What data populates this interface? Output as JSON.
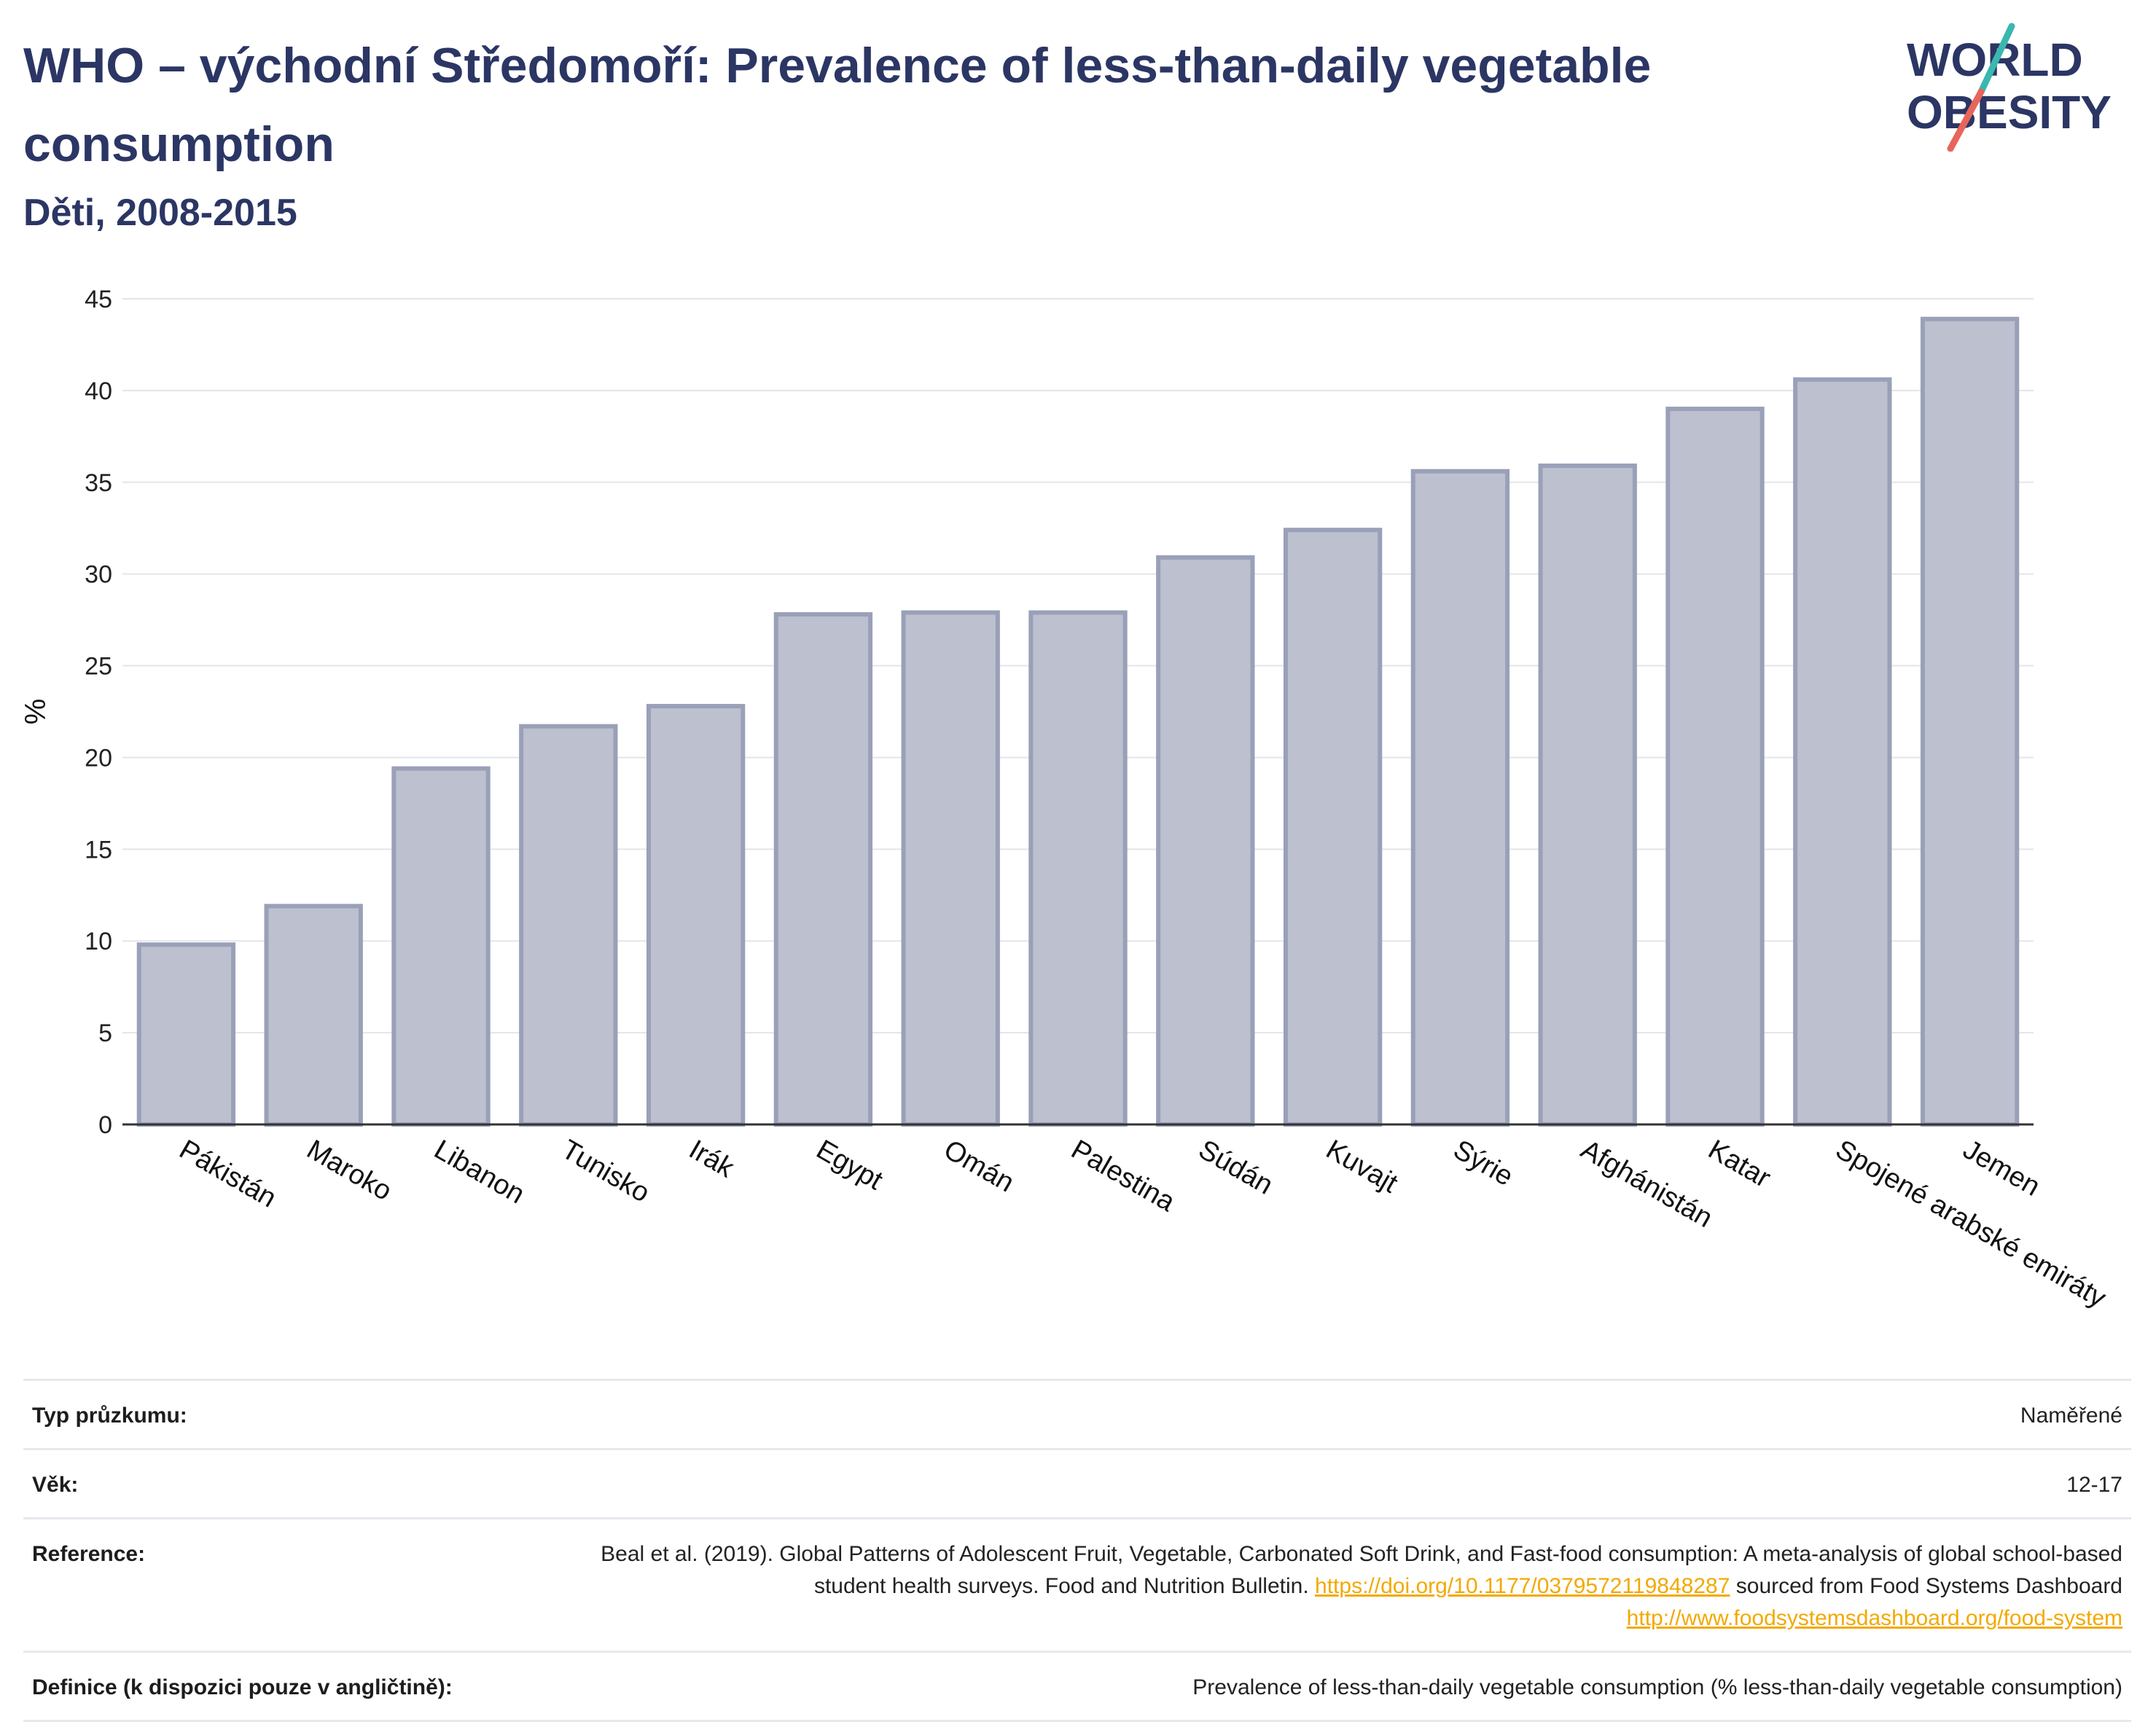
{
  "header": {
    "title": "WHO – východní Středomoří: Prevalence of less-than-daily vegetable consumption",
    "subtitle": "Děti, 2008-2015"
  },
  "logo": {
    "line1": "WORLD",
    "line2": "OBESITY",
    "text_color": "#2b3664",
    "slash_color_top": "#3ab7b0",
    "slash_color_bottom": "#e8655b"
  },
  "chart_data": {
    "type": "bar",
    "title": "",
    "xlabel": "",
    "ylabel": "%",
    "ylim": [
      0,
      45
    ],
    "yticks": [
      0,
      5,
      10,
      15,
      20,
      25,
      30,
      35,
      40,
      45
    ],
    "grid": true,
    "bar_color": "#bcc0cf",
    "bar_edge_color": "#9aa0b8",
    "categories": [
      "Pákistán",
      "Maroko",
      "Libanon",
      "Tunisko",
      "Irák",
      "Egypt",
      "Omán",
      "Palestina",
      "Súdán",
      "Kuvajt",
      "Sýrie",
      "Afghánistán",
      "Katar",
      "Spojené arabské emiráty",
      "Jemen"
    ],
    "values": [
      9.8,
      11.9,
      19.4,
      21.7,
      22.8,
      27.8,
      27.9,
      27.9,
      30.9,
      32.4,
      35.6,
      35.9,
      39.0,
      40.6,
      43.9
    ]
  },
  "meta": {
    "survey_type_label": "Typ průzkumu:",
    "survey_type_value": "Naměřené",
    "age_label": "Věk:",
    "age_value": "12-17",
    "reference_label": "Reference:",
    "reference_text": "Beal et al. (2019). Global Patterns of Adolescent Fruit, Vegetable, Carbonated Soft Drink, and Fast-food consumption: A meta-analysis of global school-based student health surveys. Food and Nutrition Bulletin.",
    "reference_link1": "https://doi.org/10.1177/0379572119848287",
    "reference_mid": "sourced from Food Systems Dashboard",
    "reference_link2": "http://www.foodsystemsdashboard.org/food-system",
    "definition_label": "Definice (k dispozici pouze v angličtině):",
    "definition_value": "Prevalence of less-than-daily vegetable consumption (% less-than-daily vegetable consumption)"
  }
}
